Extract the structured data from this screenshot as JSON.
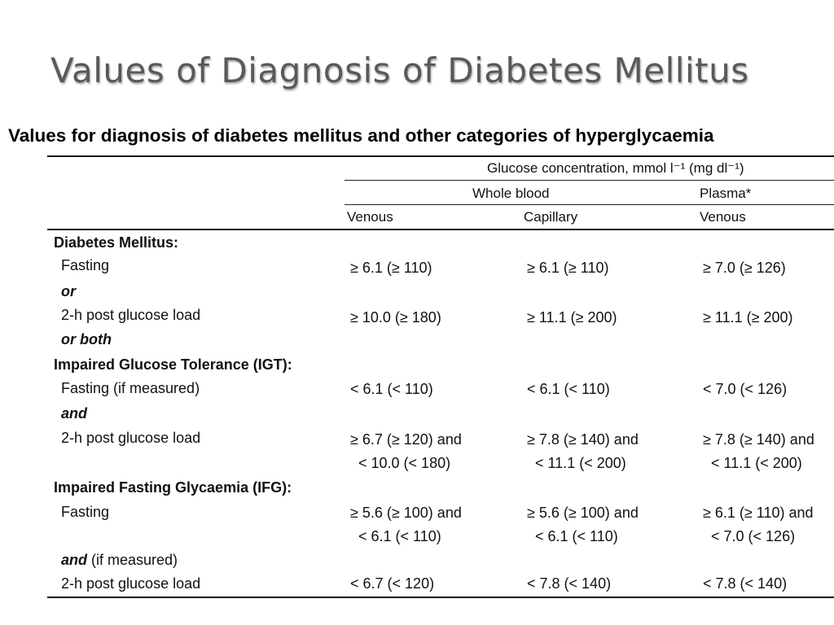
{
  "slide": {
    "title": "Values of Diagnosis of Diabetes Mellitus"
  },
  "table": {
    "title": "Values for diagnosis of diabetes mellitus and other categories of hyperglycaemia",
    "header": {
      "group": "Glucose concentration, mmol l⁻¹ (mg dl⁻¹)",
      "whole_blood": "Whole blood",
      "plasma": "Plasma*",
      "venous_wb": "Venous",
      "capillary": "Capillary",
      "venous_plasma": "Venous"
    },
    "diabetes": {
      "label": "Diabetes Mellitus:",
      "fasting": {
        "label": "Fasting",
        "venous": "≥ 6.1 (≥ 110)",
        "capillary": "≥ 6.1 (≥ 110)",
        "plasma": "≥ 7.0 (≥ 126)"
      },
      "or": "or",
      "post_load": {
        "label": "2-h post glucose load",
        "venous": "≥ 10.0 (≥ 180)",
        "capillary": "≥ 11.1 (≥ 200)",
        "plasma": "≥ 11.1 (≥ 200)"
      },
      "or_both": "or both"
    },
    "igt": {
      "label": "Impaired Glucose Tolerance (IGT):",
      "fasting": {
        "label": "Fasting (if measured)",
        "venous": "< 6.1 (< 110)",
        "capillary": "< 6.1 (< 110)",
        "plasma": "< 7.0 (< 126)"
      },
      "and": "and",
      "post_load": {
        "label": "2-h post glucose load",
        "venous_1": "≥ 6.7 (≥ 120) and",
        "venous_2": "< 10.0 (< 180)",
        "capillary_1": "≥ 7.8 (≥ 140) and",
        "capillary_2": "< 11.1 (< 200)",
        "plasma_1": "≥ 7.8 (≥ 140) and",
        "plasma_2": "< 11.1 (< 200)"
      }
    },
    "ifg": {
      "label": "Impaired Fasting Glycaemia (IFG):",
      "fasting": {
        "label": "Fasting",
        "venous_1": "≥ 5.6 (≥ 100) and",
        "venous_2": "< 6.1 (< 110)",
        "capillary_1": "≥ 5.6 (≥ 100) and",
        "capillary_2": "< 6.1 (< 110)",
        "plasma_1": "≥ 6.1 (≥ 110) and",
        "plasma_2": "< 7.0 (< 126)"
      },
      "and": "and",
      "if_measured": " (if measured)",
      "post_load": {
        "label": "2-h post glucose load",
        "venous": "< 6.7 (< 120)",
        "capillary": "< 7.8 (< 140)",
        "plasma": "< 7.8 (< 140)"
      }
    }
  }
}
